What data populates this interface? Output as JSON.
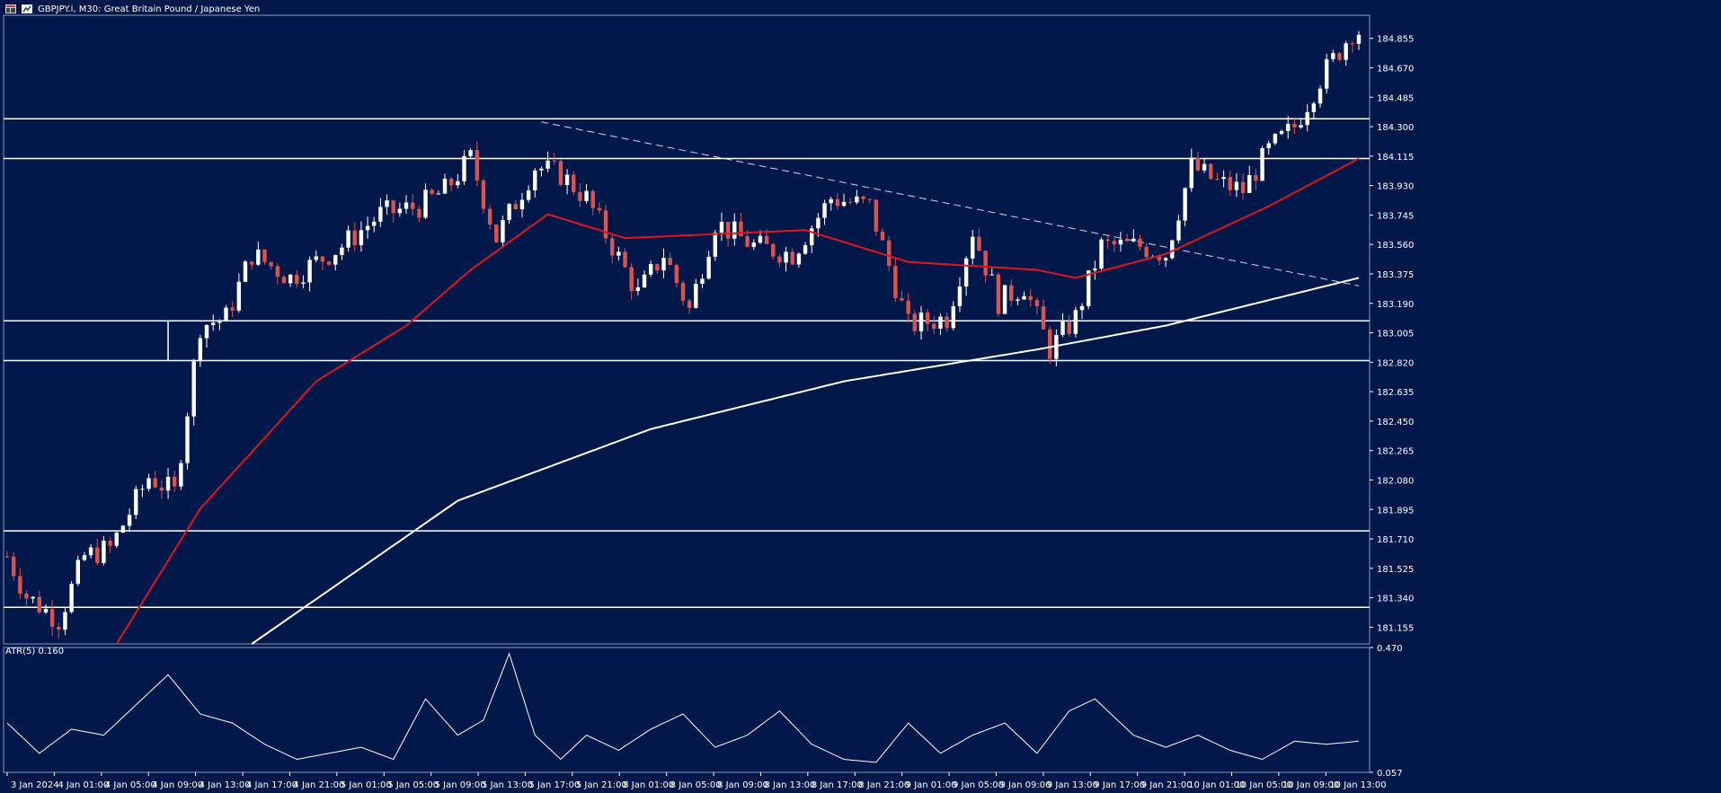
{
  "window": {
    "symbol_title": "GBPJPY.i, M30:  Great Britain Pound / Japanese Yen",
    "indicator_label": "ATR(5) 0.160"
  },
  "colors": {
    "background": "#03184a",
    "bull_candle": "#ffffff",
    "bear_candle": "#d9534f",
    "ma_fast": "#e0161b",
    "ma_slow": "#ffffff",
    "levels": "#ffffff",
    "atr_line": "#ffffff"
  },
  "chart_data": [
    {
      "type": "candlestick",
      "symbol": "GBPJPY.i",
      "timeframe": "M30",
      "price_range": [
        181.05,
        185.0
      ],
      "price_ticks": [
        "184.855",
        "184.670",
        "184.485",
        "184.300",
        "184.115",
        "183.930",
        "183.745",
        "183.560",
        "183.375",
        "183.190",
        "183.005",
        "182.820",
        "182.635",
        "182.450",
        "182.265",
        "182.080",
        "181.895",
        "181.710",
        "181.525",
        "181.340",
        "181.155"
      ],
      "time_labels": [
        "3 Jan 2024",
        "4 Jan 01:00",
        "4 Jan 05:00",
        "4 Jan 09:00",
        "4 Jan 13:00",
        "4 Jan 17:00",
        "4 Jan 21:00",
        "5 Jan 01:00",
        "5 Jan 05:00",
        "5 Jan 09:00",
        "5 Jan 13:00",
        "5 Jan 17:00",
        "5 Jan 21:00",
        "8 Jan 01:00",
        "8 Jan 05:00",
        "8 Jan 09:00",
        "8 Jan 13:00",
        "8 Jan 17:00",
        "8 Jan 21:00",
        "9 Jan 01:00",
        "9 Jan 05:00",
        "9 Jan 09:00",
        "9 Jan 13:00",
        "9 Jan 17:00",
        "9 Jan 21:00",
        "10 Jan 01:00",
        "10 Jan 05:00",
        "10 Jan 09:00",
        "10 Jan 13:00"
      ],
      "close_waypoints": [
        [
          0,
          181.6
        ],
        [
          3,
          181.35
        ],
        [
          8,
          181.2
        ],
        [
          12,
          181.6
        ],
        [
          16,
          181.65
        ],
        [
          22,
          182.1
        ],
        [
          26,
          182.0
        ],
        [
          30,
          183.05
        ],
        [
          34,
          183.1
        ],
        [
          38,
          183.5
        ],
        [
          44,
          183.35
        ],
        [
          52,
          183.55
        ],
        [
          58,
          183.75
        ],
        [
          64,
          183.8
        ],
        [
          68,
          183.9
        ],
        [
          72,
          184.1
        ],
        [
          76,
          183.6
        ],
        [
          82,
          184.05
        ],
        [
          86,
          184.0
        ],
        [
          90,
          183.85
        ],
        [
          94,
          183.55
        ],
        [
          98,
          183.25
        ],
        [
          102,
          183.5
        ],
        [
          106,
          183.15
        ],
        [
          110,
          183.7
        ],
        [
          116,
          183.55
        ],
        [
          122,
          183.5
        ],
        [
          128,
          183.85
        ],
        [
          134,
          183.8
        ],
        [
          140,
          183.05
        ],
        [
          146,
          183.1
        ],
        [
          150,
          183.65
        ],
        [
          154,
          183.2
        ],
        [
          158,
          183.3
        ],
        [
          162,
          182.9
        ],
        [
          166,
          183.1
        ],
        [
          170,
          183.55
        ],
        [
          176,
          183.55
        ],
        [
          180,
          183.5
        ],
        [
          184,
          184.05
        ],
        [
          188,
          183.95
        ],
        [
          192,
          183.9
        ],
        [
          196,
          184.15
        ],
        [
          200,
          184.3
        ],
        [
          204,
          184.6
        ],
        [
          209,
          184.9
        ]
      ],
      "ma_fast_waypoints": [
        [
          17,
          181.05
        ],
        [
          30,
          181.9
        ],
        [
          48,
          182.7
        ],
        [
          62,
          183.05
        ],
        [
          72,
          183.4
        ],
        [
          84,
          183.75
        ],
        [
          96,
          183.6
        ],
        [
          124,
          183.65
        ],
        [
          140,
          183.45
        ],
        [
          160,
          183.4
        ],
        [
          166,
          183.35
        ],
        [
          180,
          183.5
        ],
        [
          196,
          183.8
        ],
        [
          210,
          184.1
        ]
      ],
      "ma_slow_waypoints": [
        [
          38,
          181.05
        ],
        [
          70,
          181.95
        ],
        [
          100,
          182.4
        ],
        [
          130,
          182.7
        ],
        [
          160,
          182.9
        ],
        [
          180,
          183.05
        ],
        [
          210,
          183.35
        ]
      ],
      "horizontal_levels": [
        184.35,
        184.1,
        183.08,
        182.83,
        181.76,
        181.28
      ],
      "zone_box": {
        "from_index": 25,
        "price_top": 183.08,
        "price_bottom": 182.83
      },
      "trendline": {
        "from": [
          83,
          184.33
        ],
        "to": [
          210,
          183.3
        ]
      }
    },
    {
      "type": "line",
      "name": "ATR(5)",
      "current_value": 0.16,
      "axis_ticks": [
        "0.470",
        "0.057"
      ],
      "y_range": [
        0.057,
        0.47
      ],
      "waypoints": [
        [
          0,
          0.22
        ],
        [
          5,
          0.12
        ],
        [
          10,
          0.2
        ],
        [
          15,
          0.18
        ],
        [
          20,
          0.28
        ],
        [
          25,
          0.38
        ],
        [
          30,
          0.25
        ],
        [
          35,
          0.22
        ],
        [
          40,
          0.15
        ],
        [
          45,
          0.1
        ],
        [
          50,
          0.12
        ],
        [
          55,
          0.14
        ],
        [
          60,
          0.1
        ],
        [
          65,
          0.3
        ],
        [
          70,
          0.18
        ],
        [
          74,
          0.23
        ],
        [
          78,
          0.45
        ],
        [
          82,
          0.18
        ],
        [
          86,
          0.1
        ],
        [
          90,
          0.18
        ],
        [
          95,
          0.13
        ],
        [
          100,
          0.2
        ],
        [
          105,
          0.25
        ],
        [
          110,
          0.14
        ],
        [
          115,
          0.18
        ],
        [
          120,
          0.26
        ],
        [
          125,
          0.15
        ],
        [
          130,
          0.1
        ],
        [
          135,
          0.09
        ],
        [
          140,
          0.22
        ],
        [
          145,
          0.12
        ],
        [
          150,
          0.18
        ],
        [
          155,
          0.22
        ],
        [
          160,
          0.12
        ],
        [
          165,
          0.26
        ],
        [
          169,
          0.3
        ],
        [
          175,
          0.18
        ],
        [
          180,
          0.14
        ],
        [
          185,
          0.18
        ],
        [
          190,
          0.13
        ],
        [
          195,
          0.1
        ],
        [
          200,
          0.16
        ],
        [
          205,
          0.15
        ],
        [
          210,
          0.16
        ]
      ]
    }
  ]
}
